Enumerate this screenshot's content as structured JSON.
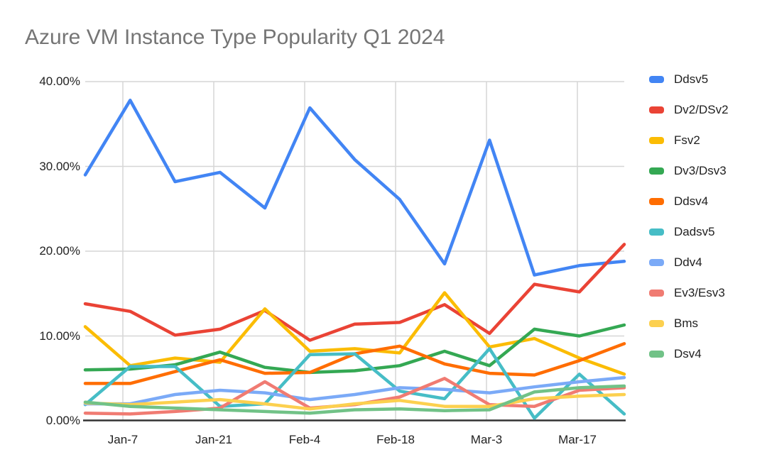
{
  "title": "Azure VM Instance Type Popularity Q1 2024",
  "chart_data": {
    "type": "line",
    "title": "Azure VM Instance Type Popularity Q1 2024",
    "x_labels": [
      "Jan-7",
      "Jan-21",
      "Feb-4",
      "Feb-18",
      "Mar-3",
      "Mar-17"
    ],
    "x_label_point_indices": [
      1,
      3,
      5,
      7,
      9,
      11
    ],
    "y_tick_labels": [
      "40.00%",
      "30.00%",
      "20.00%",
      "10.00%",
      "0.00%"
    ],
    "ylim": [
      0,
      40
    ],
    "y_unit": "%",
    "grid": true,
    "legend_position": "right",
    "points_per_series": 13,
    "series": [
      {
        "name": "Ddsv5",
        "color": "#4285F4",
        "values": [
          29.0,
          37.8,
          28.2,
          29.3,
          25.1,
          36.9,
          30.8,
          26.1,
          18.5,
          33.1,
          17.2,
          18.3,
          18.8
        ]
      },
      {
        "name": "Dv2/DSv2",
        "color": "#EA4335",
        "values": [
          13.8,
          12.9,
          10.1,
          10.8,
          13.0,
          9.5,
          11.4,
          11.6,
          13.7,
          10.3,
          16.1,
          15.2,
          20.8
        ]
      },
      {
        "name": "Fsv2",
        "color": "#FBBC04",
        "values": [
          11.1,
          6.5,
          7.4,
          6.9,
          13.2,
          8.2,
          8.5,
          8.0,
          15.1,
          8.7,
          9.7,
          7.4,
          5.5
        ]
      },
      {
        "name": "Dv3/Dsv3",
        "color": "#34A853",
        "values": [
          6.0,
          6.1,
          6.6,
          8.1,
          6.3,
          5.7,
          5.9,
          6.5,
          8.2,
          6.5,
          10.8,
          10.0,
          11.3
        ]
      },
      {
        "name": "Ddsv4",
        "color": "#FF6D01",
        "values": [
          4.4,
          4.4,
          5.8,
          7.2,
          5.6,
          5.7,
          7.9,
          8.8,
          6.7,
          5.6,
          5.4,
          7.1,
          9.1
        ]
      },
      {
        "name": "Dadsv5",
        "color": "#46BDC6",
        "values": [
          1.9,
          6.4,
          6.4,
          1.7,
          2.0,
          7.8,
          7.9,
          3.5,
          2.6,
          8.5,
          0.3,
          5.5,
          0.8
        ]
      },
      {
        "name": "Ddv4",
        "color": "#7BAAF7",
        "values": [
          2.0,
          2.0,
          3.1,
          3.6,
          3.3,
          2.5,
          3.1,
          3.9,
          3.7,
          3.3,
          4.0,
          4.6,
          5.1
        ]
      },
      {
        "name": "Ev3/Esv3",
        "color": "#F07B72",
        "values": [
          0.9,
          0.8,
          1.1,
          1.5,
          4.6,
          1.5,
          1.9,
          2.8,
          5.0,
          1.9,
          1.7,
          3.6,
          3.9
        ]
      },
      {
        "name": "Bms",
        "color": "#FCD04F",
        "values": [
          2.1,
          1.9,
          2.2,
          2.5,
          2.0,
          1.4,
          2.0,
          2.4,
          1.7,
          1.7,
          2.6,
          2.9,
          3.1
        ]
      },
      {
        "name": "Dsv4",
        "color": "#71C287",
        "values": [
          2.2,
          1.7,
          1.5,
          1.3,
          1.1,
          0.9,
          1.3,
          1.4,
          1.2,
          1.3,
          3.4,
          3.9,
          4.1
        ]
      }
    ],
    "colors": {
      "title_text": "#757575",
      "axis_text": "#222222",
      "gridline": "#d6d6d6",
      "axis_line": "#333333",
      "background": "#ffffff"
    }
  }
}
